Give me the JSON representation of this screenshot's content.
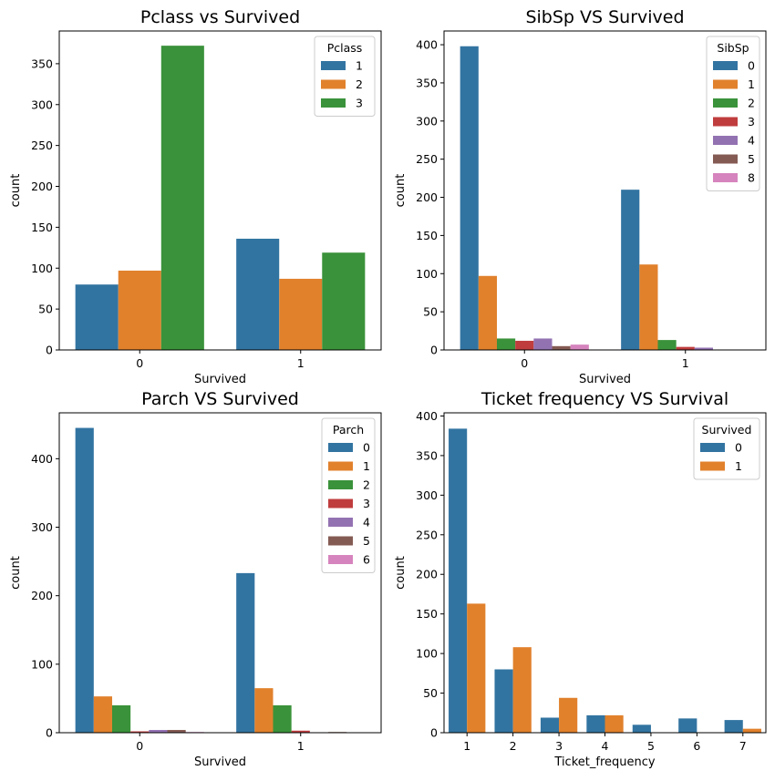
{
  "colors": {
    "palette": [
      "#3274a1",
      "#e1812c",
      "#3a923a",
      "#c03d3e",
      "#9372b2",
      "#845b53",
      "#d684bd"
    ],
    "axis": "#000000",
    "legend_border": "#cccccc"
  },
  "chart_data": [
    {
      "type": "bar",
      "title": "Pclass vs Survived",
      "xlabel": "Survived",
      "ylabel": "count",
      "categories": [
        "0",
        "1"
      ],
      "legend_title": "Pclass",
      "legend_loc": "upper right",
      "ylim": [
        0,
        390
      ],
      "yticks": [
        0,
        50,
        100,
        150,
        200,
        250,
        300,
        350
      ],
      "grid": false,
      "series": [
        {
          "name": "1",
          "values": [
            80,
            136
          ]
        },
        {
          "name": "2",
          "values": [
            97,
            87
          ]
        },
        {
          "name": "3",
          "values": [
            372,
            119
          ]
        }
      ]
    },
    {
      "type": "bar",
      "title": "SibSp VS Survived",
      "xlabel": "Survived",
      "ylabel": "count",
      "categories": [
        "0",
        "1"
      ],
      "legend_title": "SibSp",
      "legend_loc": "upper right",
      "ylim": [
        0,
        418
      ],
      "yticks": [
        0,
        50,
        100,
        150,
        200,
        250,
        300,
        350,
        400
      ],
      "grid": false,
      "series": [
        {
          "name": "0",
          "values": [
            398,
            210
          ]
        },
        {
          "name": "1",
          "values": [
            97,
            112
          ]
        },
        {
          "name": "2",
          "values": [
            15,
            13
          ]
        },
        {
          "name": "3",
          "values": [
            12,
            4
          ]
        },
        {
          "name": "4",
          "values": [
            15,
            3
          ]
        },
        {
          "name": "5",
          "values": [
            5,
            0
          ]
        },
        {
          "name": "8",
          "values": [
            7,
            0
          ]
        }
      ]
    },
    {
      "type": "bar",
      "title": "Parch VS Survived",
      "xlabel": "Survived",
      "ylabel": "count",
      "categories": [
        "0",
        "1"
      ],
      "legend_title": "Parch",
      "legend_loc": "upper right",
      "ylim": [
        0,
        467
      ],
      "yticks": [
        0,
        100,
        200,
        300,
        400
      ],
      "grid": false,
      "series": [
        {
          "name": "0",
          "values": [
            445,
            233
          ]
        },
        {
          "name": "1",
          "values": [
            53,
            65
          ]
        },
        {
          "name": "2",
          "values": [
            40,
            40
          ]
        },
        {
          "name": "3",
          "values": [
            2,
            3
          ]
        },
        {
          "name": "4",
          "values": [
            4,
            0
          ]
        },
        {
          "name": "5",
          "values": [
            4,
            1
          ]
        },
        {
          "name": "6",
          "values": [
            1,
            0
          ]
        }
      ]
    },
    {
      "type": "bar",
      "title": "Ticket frequency VS Survival",
      "xlabel": "Ticket_frequency",
      "ylabel": "count",
      "categories": [
        "1",
        "2",
        "3",
        "4",
        "5",
        "6",
        "7"
      ],
      "legend_title": "Survived",
      "legend_loc": "upper right",
      "ylim": [
        0,
        404
      ],
      "yticks": [
        0,
        50,
        100,
        150,
        200,
        250,
        300,
        350,
        400
      ],
      "grid": false,
      "series": [
        {
          "name": "0",
          "values": [
            384,
            80,
            19,
            22,
            10,
            18,
            16
          ]
        },
        {
          "name": "1",
          "values": [
            163,
            108,
            44,
            22,
            0,
            0,
            5
          ]
        }
      ]
    }
  ]
}
